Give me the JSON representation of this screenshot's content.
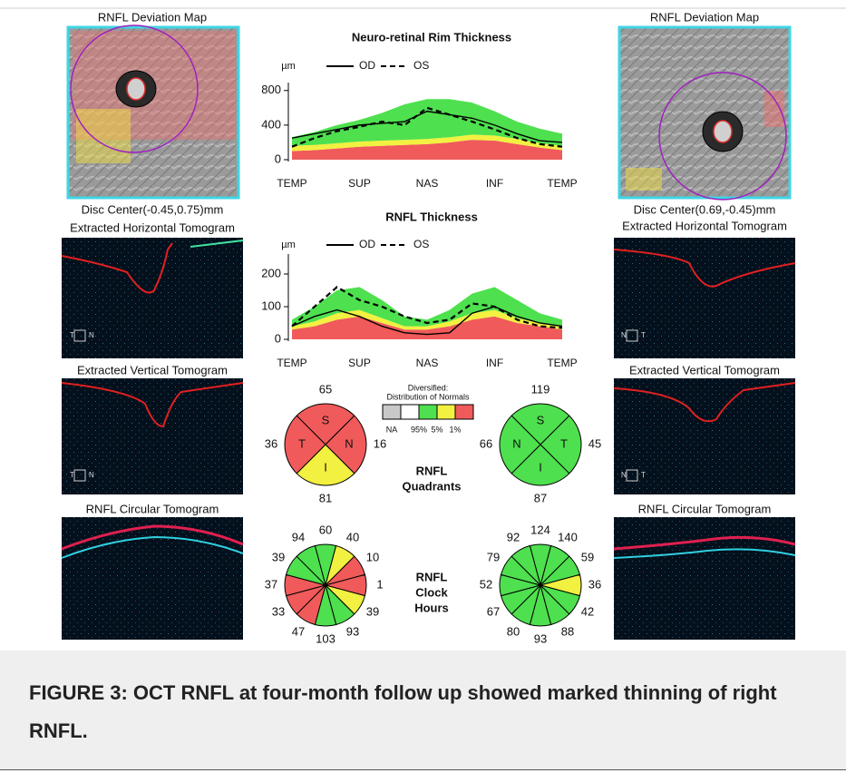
{
  "left_panel": {
    "deviation_map": {
      "title": "RNFL Deviation Map",
      "disc_center": "Disc Center(-0.45,0.75)mm"
    },
    "horizontal_tomogram": {
      "title": "Extracted Horizontal Tomogram",
      "orientation": [
        "T",
        "N"
      ]
    },
    "vertical_tomogram": {
      "title": "Extracted Vertical Tomogram",
      "orientation": [
        "T",
        "N"
      ]
    },
    "circular_tomogram": {
      "title": "RNFL Circular Tomogram"
    }
  },
  "right_panel": {
    "deviation_map": {
      "title": "RNFL Deviation Map",
      "disc_center": "Disc Center(0.69,-0.45)mm"
    },
    "horizontal_tomogram": {
      "title": "Extracted Horizontal Tomogram",
      "orientation": [
        "N",
        "T"
      ]
    },
    "vertical_tomogram": {
      "title": "Extracted Vertical Tomogram",
      "orientation": [
        "N",
        "T"
      ]
    },
    "circular_tomogram": {
      "title": "RNFL Circular Tomogram"
    }
  },
  "chart_data": [
    {
      "type": "line",
      "title": "Neuro-retinal Rim Thickness",
      "y_label": "µm",
      "x": [
        0,
        30,
        60,
        90,
        120,
        150,
        180,
        210,
        240,
        270,
        300,
        330,
        360
      ],
      "xlim": [
        0,
        360
      ],
      "xticks": [
        {
          "value": 0,
          "label": "TEMP"
        },
        {
          "value": 90,
          "label": "SUP"
        },
        {
          "value": 180,
          "label": "NAS"
        },
        {
          "value": 270,
          "label": "INF"
        },
        {
          "value": 360,
          "label": "TEMP"
        }
      ],
      "ylim": [
        0,
        850
      ],
      "yticks": [
        0,
        400,
        800
      ],
      "bands": [
        {
          "color": "#f05a5a",
          "values": [
            100,
            110,
            130,
            150,
            160,
            170,
            180,
            200,
            230,
            220,
            180,
            140,
            110
          ]
        },
        {
          "color": "#f2f040",
          "values": [
            60,
            60,
            60,
            60,
            60,
            60,
            60,
            60,
            60,
            60,
            60,
            50,
            50
          ]
        },
        {
          "color": "#4ee04e",
          "values": [
            100,
            150,
            210,
            250,
            320,
            410,
            460,
            440,
            370,
            280,
            200,
            170,
            140
          ]
        }
      ],
      "series": [
        {
          "name": "OD",
          "color": "#000000",
          "dash": "solid",
          "values": [
            250,
            300,
            350,
            400,
            420,
            440,
            560,
            520,
            480,
            400,
            300,
            220,
            200
          ]
        },
        {
          "name": "OS",
          "color": "#000000",
          "dash": "dashed",
          "values": [
            150,
            250,
            330,
            380,
            440,
            400,
            600,
            520,
            440,
            350,
            250,
            180,
            150
          ]
        }
      ]
    },
    {
      "type": "line",
      "title": "RNFL Thickness",
      "y_label": "µm",
      "x": [
        0,
        30,
        60,
        90,
        120,
        150,
        180,
        210,
        240,
        270,
        300,
        330,
        360
      ],
      "xlim": [
        0,
        360
      ],
      "xticks": [
        {
          "value": 0,
          "label": "TEMP"
        },
        {
          "value": 90,
          "label": "SUP"
        },
        {
          "value": 180,
          "label": "NAS"
        },
        {
          "value": 270,
          "label": "INF"
        },
        {
          "value": 360,
          "label": "TEMP"
        }
      ],
      "ylim": [
        0,
        250
      ],
      "yticks": [
        0,
        100,
        200
      ],
      "bands": [
        {
          "color": "#f05a5a",
          "values": [
            30,
            40,
            60,
            70,
            50,
            30,
            30,
            40,
            60,
            70,
            50,
            40,
            30
          ]
        },
        {
          "color": "#f2f040",
          "values": [
            10,
            15,
            20,
            20,
            15,
            10,
            10,
            15,
            20,
            20,
            15,
            10,
            10
          ]
        },
        {
          "color": "#4ee04e",
          "values": [
            20,
            45,
            70,
            70,
            55,
            30,
            20,
            35,
            60,
            70,
            55,
            30,
            20
          ]
        }
      ],
      "series": [
        {
          "name": "OD",
          "color": "#000000",
          "dash": "solid",
          "values": [
            40,
            70,
            90,
            70,
            40,
            20,
            15,
            20,
            80,
            100,
            70,
            50,
            40
          ]
        },
        {
          "name": "OS",
          "color": "#000000",
          "dash": "dashed",
          "values": [
            40,
            100,
            160,
            120,
            100,
            70,
            50,
            60,
            110,
            100,
            60,
            40,
            35
          ]
        }
      ]
    }
  ],
  "normals_legend": {
    "title_lines": [
      "Diversified:",
      "Distribution of Normals"
    ],
    "colors": [
      "#c8c8c8",
      "#ffffff",
      "#4ee04e",
      "#f2f040",
      "#f05a5a"
    ],
    "labels": [
      "NA",
      "95%",
      "5%",
      "1%"
    ]
  },
  "quadrants": {
    "title_lines": [
      "RNFL",
      "Quadrants"
    ],
    "eyes": [
      {
        "sectors": [
          {
            "label": "S",
            "position": "top",
            "value": 65,
            "color": "#f05a5a"
          },
          {
            "label": "N",
            "position": "right",
            "value": 16,
            "color": "#f05a5a"
          },
          {
            "label": "I",
            "position": "bottom",
            "value": 81,
            "color": "#f2f040"
          },
          {
            "label": "T",
            "position": "left",
            "value": 36,
            "color": "#f05a5a"
          }
        ]
      },
      {
        "sectors": [
          {
            "label": "S",
            "position": "top",
            "value": 119,
            "color": "#4ee04e"
          },
          {
            "label": "T",
            "position": "right",
            "value": 45,
            "color": "#4ee04e"
          },
          {
            "label": "I",
            "position": "bottom",
            "value": 87,
            "color": "#4ee04e"
          },
          {
            "label": "N",
            "position": "left",
            "value": 66,
            "color": "#4ee04e"
          }
        ]
      }
    ]
  },
  "clock_hours": {
    "title_lines": [
      "RNFL",
      "Clock",
      "Hours"
    ],
    "eyes": [
      {
        "values": [
          60,
          40,
          10,
          1,
          39,
          93,
          103,
          47,
          33,
          37,
          39,
          94
        ],
        "colors": [
          "#4ee04e",
          "#f2f040",
          "#f05a5a",
          "#f05a5a",
          "#f2f040",
          "#4ee04e",
          "#4ee04e",
          "#f05a5a",
          "#f05a5a",
          "#f05a5a",
          "#4ee04e",
          "#4ee04e"
        ]
      },
      {
        "values": [
          124,
          140,
          59,
          36,
          42,
          88,
          93,
          80,
          67,
          52,
          79,
          92
        ],
        "colors": [
          "#4ee04e",
          "#4ee04e",
          "#4ee04e",
          "#f2f040",
          "#4ee04e",
          "#4ee04e",
          "#4ee04e",
          "#4ee04e",
          "#4ee04e",
          "#4ee04e",
          "#4ee04e",
          "#4ee04e"
        ]
      }
    ]
  },
  "caption": "FIGURE 3: OCT RNFL at four-month follow up showed marked thinning of right RNFL."
}
